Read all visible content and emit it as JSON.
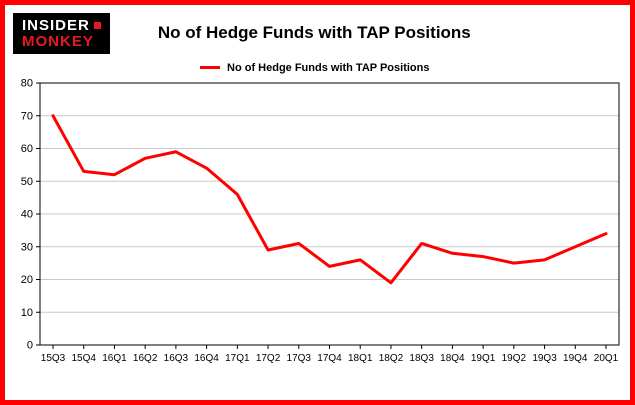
{
  "logo": {
    "line1": "INSIDER",
    "line2": "MONKEY"
  },
  "header": {
    "title": "No of Hedge Funds with TAP Positions"
  },
  "legend": {
    "label": "No of Hedge Funds with TAP Positions"
  },
  "colors": {
    "brand_red": "#e8191f",
    "line_red": "#ff0000",
    "frame_border": "#ff0000",
    "gridline": "#c8c8c8",
    "axis": "#000000"
  },
  "chart_data": {
    "type": "line",
    "title": "No of Hedge Funds with TAP Positions",
    "series_name": "No of Hedge Funds with TAP Positions",
    "categories": [
      "15Q3",
      "15Q4",
      "16Q1",
      "16Q2",
      "16Q3",
      "16Q4",
      "17Q1",
      "17Q2",
      "17Q3",
      "17Q4",
      "18Q1",
      "18Q2",
      "18Q3",
      "18Q4",
      "19Q1",
      "19Q2",
      "19Q3",
      "19Q4",
      "20Q1"
    ],
    "values": [
      70,
      53,
      52,
      57,
      59,
      54,
      46,
      29,
      31,
      24,
      26,
      19,
      31,
      28,
      27,
      25,
      26,
      30,
      34
    ],
    "xlabel": "",
    "ylabel": "",
    "ylim": [
      0,
      80
    ],
    "ytick_step": 10,
    "grid": true,
    "legend_position": "top-left",
    "line_color": "#ff0000"
  }
}
